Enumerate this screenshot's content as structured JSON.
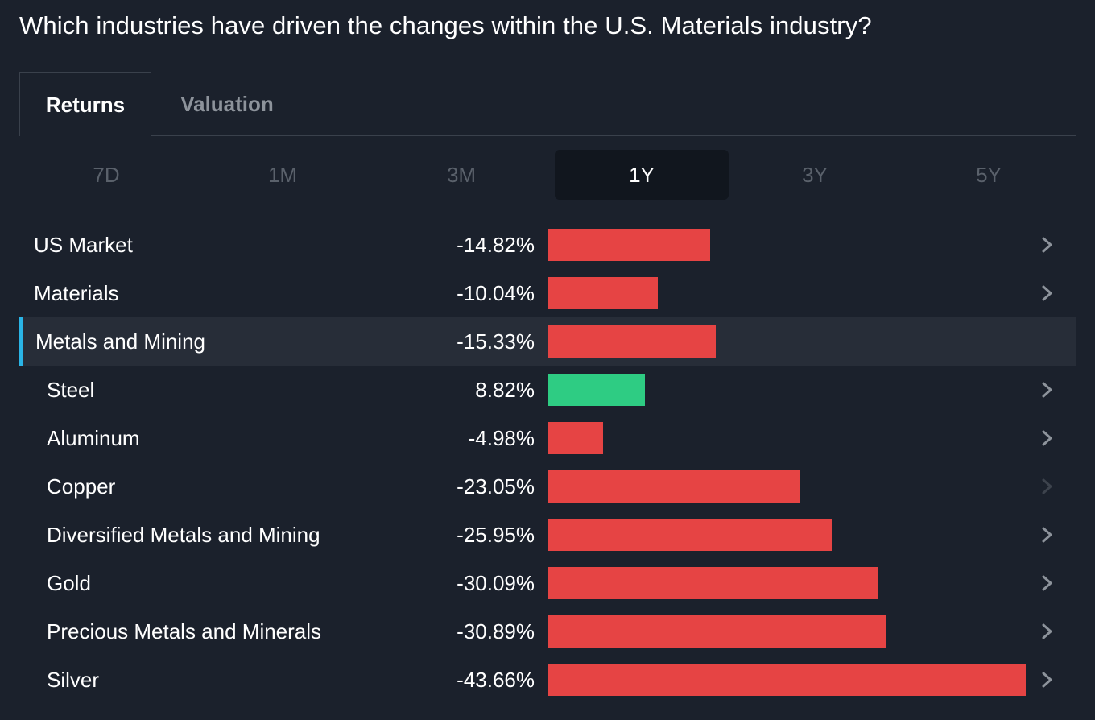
{
  "page": {
    "title": "Which industries have driven the changes within the U.S. Materials industry?"
  },
  "tabs": [
    {
      "label": "Returns",
      "active": true
    },
    {
      "label": "Valuation",
      "active": false
    }
  ],
  "periods": [
    {
      "label": "7D",
      "active": false
    },
    {
      "label": "1M",
      "active": false
    },
    {
      "label": "3M",
      "active": false
    },
    {
      "label": "1Y",
      "active": true
    },
    {
      "label": "3Y",
      "active": false
    },
    {
      "label": "5Y",
      "active": false
    }
  ],
  "colors": {
    "negative": "#e64444",
    "positive": "#2ecc83",
    "accent": "#2ab4e6",
    "chevron": "#8d939b",
    "chevron_dim": "#3d434d"
  },
  "chart_data": {
    "type": "bar",
    "categories": [
      "US Market",
      "Materials",
      "Metals and Mining",
      "Steel",
      "Aluminum",
      "Copper",
      "Diversified Metals and Mining",
      "Gold",
      "Precious Metals and Minerals",
      "Silver"
    ],
    "values": [
      -14.82,
      -10.04,
      -15.33,
      8.82,
      -4.98,
      -23.05,
      -25.95,
      -30.09,
      -30.89,
      -43.66
    ]
  },
  "rows": [
    {
      "label": "US Market",
      "value_text": "-14.82%",
      "value": -14.82,
      "indent": false,
      "highlight": false,
      "chevron": "normal"
    },
    {
      "label": "Materials",
      "value_text": "-10.04%",
      "value": -10.04,
      "indent": false,
      "highlight": false,
      "chevron": "normal"
    },
    {
      "label": "Metals and Mining",
      "value_text": "-15.33%",
      "value": -15.33,
      "indent": false,
      "highlight": true,
      "chevron": "none"
    },
    {
      "label": "Steel",
      "value_text": "8.82%",
      "value": 8.82,
      "indent": true,
      "highlight": false,
      "chevron": "normal"
    },
    {
      "label": "Aluminum",
      "value_text": "-4.98%",
      "value": -4.98,
      "indent": true,
      "highlight": false,
      "chevron": "normal"
    },
    {
      "label": "Copper",
      "value_text": "-23.05%",
      "value": -23.05,
      "indent": true,
      "highlight": false,
      "chevron": "dim"
    },
    {
      "label": "Diversified Metals and Mining",
      "value_text": "-25.95%",
      "value": -25.95,
      "indent": true,
      "highlight": false,
      "chevron": "normal"
    },
    {
      "label": "Gold",
      "value_text": "-30.09%",
      "value": -30.09,
      "indent": true,
      "highlight": false,
      "chevron": "normal"
    },
    {
      "label": "Precious Metals and Minerals",
      "value_text": "-30.89%",
      "value": -30.89,
      "indent": true,
      "highlight": false,
      "chevron": "normal"
    },
    {
      "label": "Silver",
      "value_text": "-43.66%",
      "value": -43.66,
      "indent": true,
      "highlight": false,
      "chevron": "normal"
    }
  ]
}
